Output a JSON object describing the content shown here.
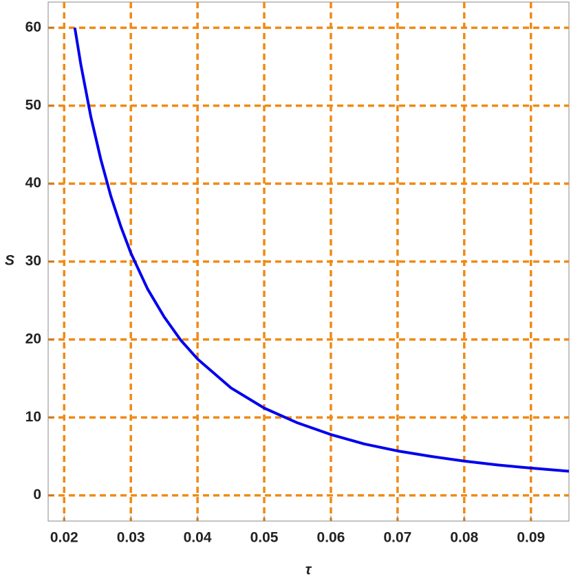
{
  "chart_data": {
    "type": "line",
    "x_label": "τ",
    "y_label": "S",
    "x": [
      0.0216,
      0.0225,
      0.024,
      0.0255,
      0.027,
      0.0285,
      0.03,
      0.0325,
      0.035,
      0.0375,
      0.04,
      0.045,
      0.05,
      0.055,
      0.06,
      0.065,
      0.07,
      0.075,
      0.08,
      0.085,
      0.09,
      0.0957
    ],
    "series": [
      {
        "color": "#0000ee",
        "values": [
          60.0,
          55.3,
          48.6,
          43.1,
          38.4,
          34.5,
          31.1,
          26.5,
          22.9,
          19.9,
          17.5,
          13.8,
          11.2,
          9.3,
          7.8,
          6.6,
          5.7,
          5.0,
          4.4,
          3.9,
          3.5,
          3.1
        ]
      }
    ],
    "xlim": [
      0.0176,
      0.0957
    ],
    "ylim": [
      -3.3,
      63.3
    ],
    "xticks": [
      0.02,
      0.03,
      0.04,
      0.05,
      0.06,
      0.07,
      0.08,
      0.09
    ],
    "yticks": [
      0,
      10,
      20,
      30,
      40,
      50,
      60
    ],
    "grid": true,
    "grid_color": "#f08a14"
  }
}
